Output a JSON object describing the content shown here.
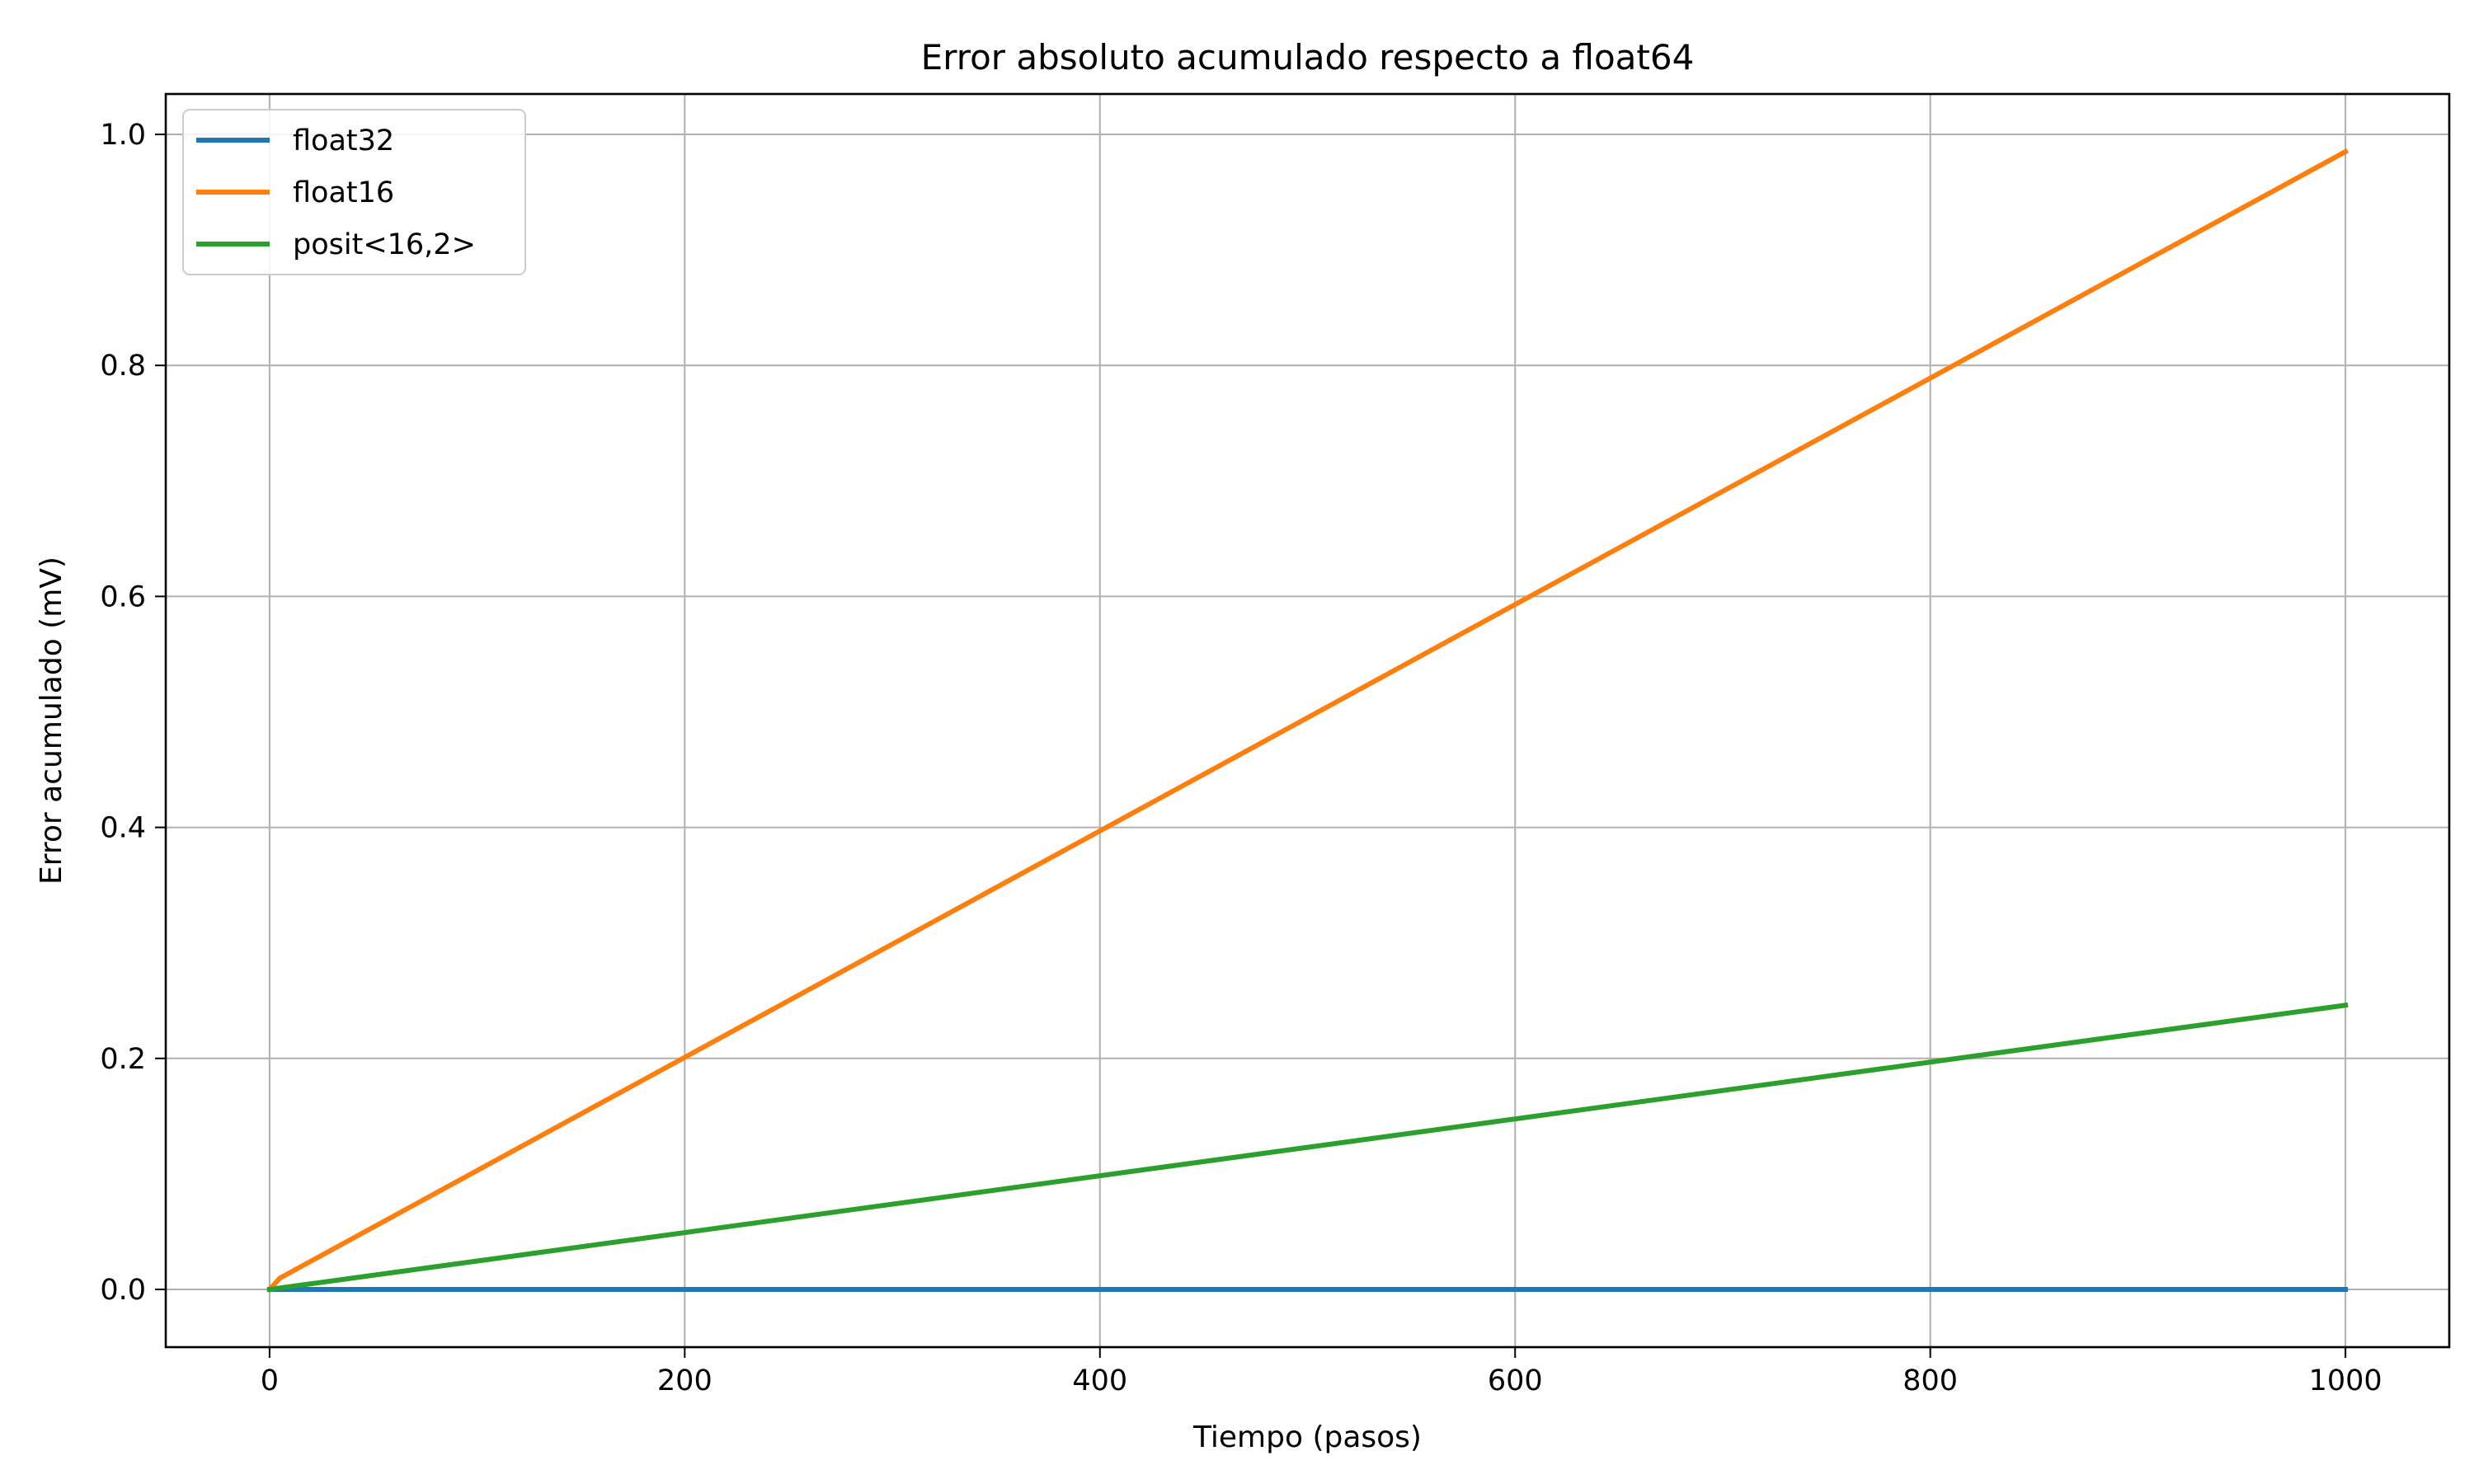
{
  "colors": {
    "background": "#ffffff",
    "grid": "#b0b0b0",
    "axis": "#000000",
    "float32": "#1f77b4",
    "float16": "#ff7f0e",
    "posit": "#2ca02c"
  },
  "chart_data": {
    "type": "line",
    "title": "Error absoluto acumulado respecto a float64",
    "xlabel": "Tiempo (pasos)",
    "ylabel": "Error acumulado (mV)",
    "xlim": [
      -50,
      1050
    ],
    "ylim": [
      -0.05,
      1.035
    ],
    "xticks": [
      0,
      200,
      400,
      600,
      800,
      1000
    ],
    "xtick_labels": [
      "0",
      "200",
      "400",
      "600",
      "800",
      "1000"
    ],
    "yticks": [
      0.0,
      0.2,
      0.4,
      0.6,
      0.8,
      1.0
    ],
    "ytick_labels": [
      "0.0",
      "0.2",
      "0.4",
      "0.6",
      "0.8",
      "1.0"
    ],
    "grid": true,
    "legend": "top-left",
    "series": [
      {
        "name": "float32",
        "color": "#1f77b4",
        "x": [
          0,
          1000
        ],
        "y": [
          0.0,
          0.0
        ]
      },
      {
        "name": "float16",
        "color": "#ff7f0e",
        "x": [
          0,
          5,
          1000
        ],
        "y": [
          0.0,
          0.0098,
          0.985
        ]
      },
      {
        "name": "posit<16,2>",
        "color": "#2ca02c",
        "x": [
          0,
          1000
        ],
        "y": [
          0.0,
          0.246
        ]
      }
    ]
  }
}
